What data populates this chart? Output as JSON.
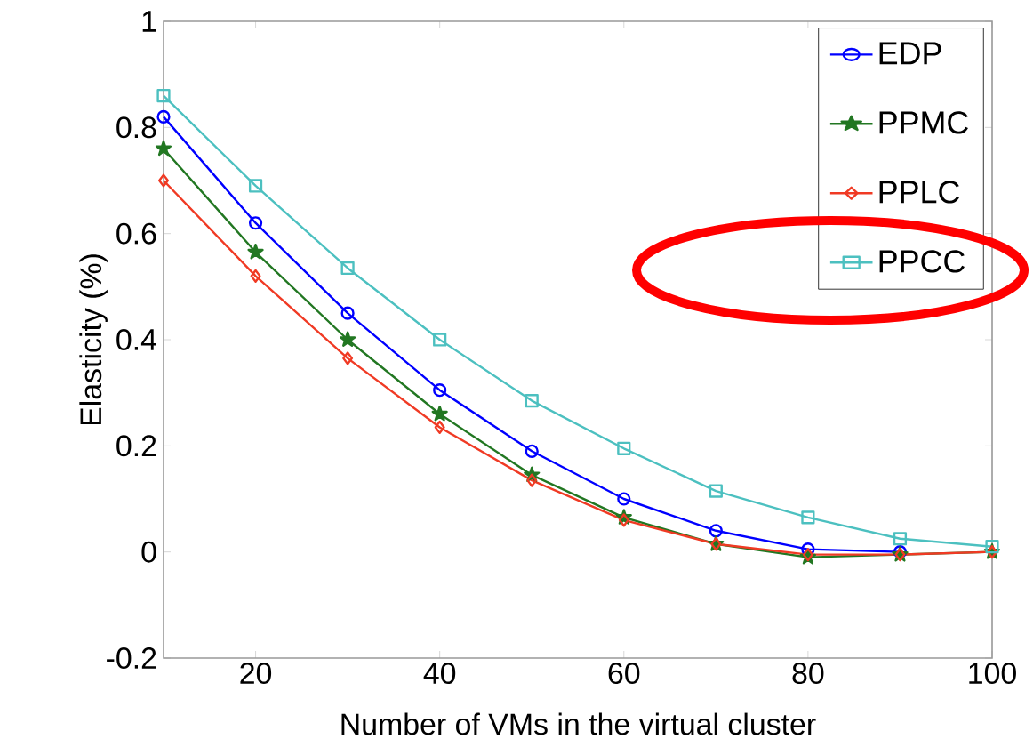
{
  "chart_data": {
    "type": "line",
    "xlabel": "Number of VMs in the virtual cluster",
    "ylabel": "Elasticity (%)",
    "x": [
      10,
      20,
      30,
      40,
      50,
      60,
      70,
      80,
      90,
      100
    ],
    "xlim": [
      10,
      100
    ],
    "xticks": [
      20,
      40,
      60,
      80,
      100
    ],
    "ylim": [
      -0.2,
      1
    ],
    "yticks": [
      -0.2,
      0,
      0.2,
      0.4,
      0.6,
      0.8,
      1
    ],
    "grid": false,
    "legend": "top right",
    "line_style": "solid",
    "series": [
      {
        "name": "EDP",
        "color": "#0000ff",
        "marker": "circle",
        "values": [
          0.82,
          0.62,
          0.45,
          0.305,
          0.19,
          0.1,
          0.04,
          0.005,
          0.0,
          null
        ]
      },
      {
        "name": "PPMC",
        "color": "#227722",
        "marker": "star",
        "values": [
          0.76,
          0.565,
          0.4,
          0.26,
          0.145,
          0.065,
          0.015,
          -0.01,
          -0.005,
          0.0
        ]
      },
      {
        "name": "PPLC",
        "color": "#f03a24",
        "marker": "diamond",
        "values": [
          0.7,
          0.52,
          0.365,
          0.235,
          0.135,
          0.06,
          0.015,
          -0.005,
          -0.005,
          0.0
        ]
      },
      {
        "name": "PPCC",
        "color": "#4cc0c0",
        "marker": "square",
        "values": [
          0.86,
          0.69,
          0.535,
          0.4,
          0.285,
          0.195,
          0.115,
          0.065,
          0.025,
          0.01
        ]
      }
    ]
  }
}
